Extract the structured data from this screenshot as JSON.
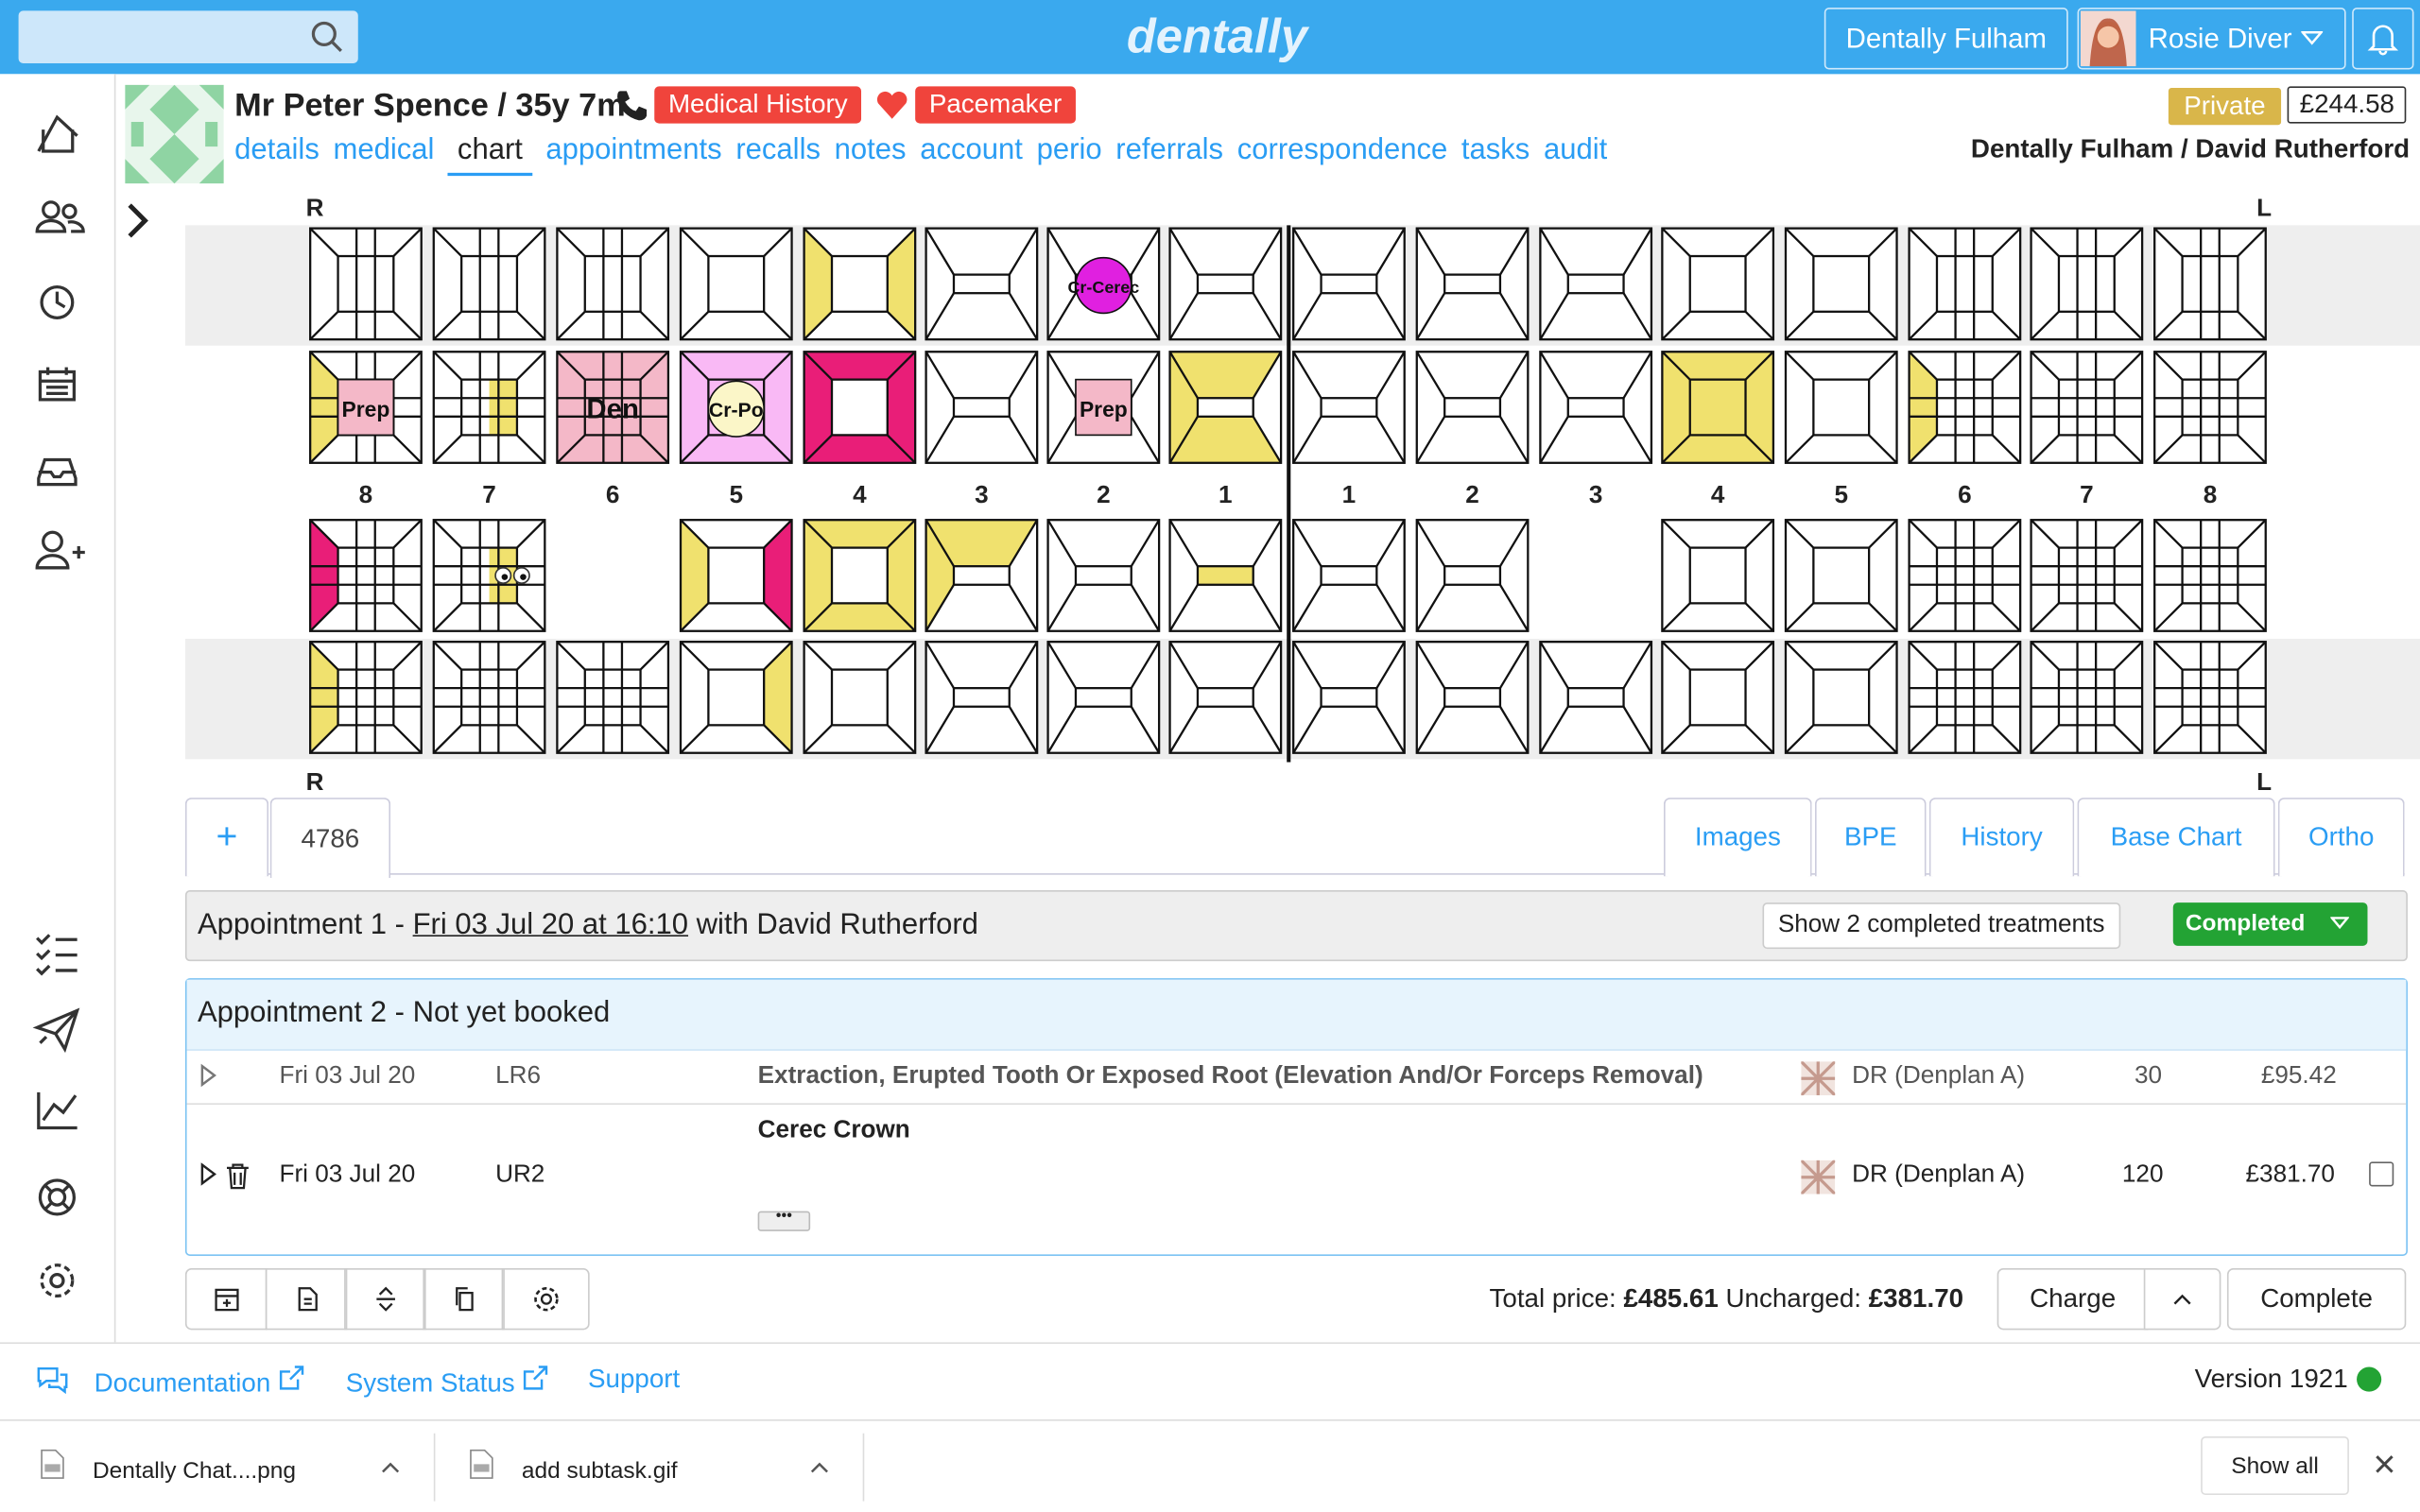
{
  "header": {
    "logo": "dentally",
    "practice": "Dentally Fulham",
    "user": "Rosie Diver"
  },
  "patient": {
    "name": "Mr Peter Spence / 35y 7m",
    "medical_history": "Medical History",
    "alert": "Pacemaker",
    "status": "Private",
    "balance": "£244.58",
    "location": "Dentally Fulham / David Rutherford",
    "tabs": [
      "details",
      "medical",
      "chart",
      "appointments",
      "recalls",
      "notes",
      "account",
      "perio",
      "referrals",
      "correspondence",
      "tasks",
      "audit"
    ]
  },
  "chart": {
    "right": "R",
    "left": "L",
    "tooth_numbers": [
      8,
      7,
      6,
      5,
      4,
      3,
      2,
      1,
      1,
      2,
      3,
      4,
      5,
      6,
      7,
      8
    ],
    "labels": [
      "Cr-Cerec",
      "Prep",
      "Den",
      "Cr-Po",
      "Prep"
    ]
  },
  "course_tabs": [
    "+",
    "4786"
  ],
  "view_tabs": [
    "Images",
    "BPE",
    "History",
    "Base Chart",
    "Ortho"
  ],
  "appointment1": {
    "prefix": "Appointment 1 - ",
    "date": "Fri 03 Jul 20 at 16:10",
    "with": " with David Rutherford",
    "show_completed": "Show 2 completed treatments",
    "status": "Completed"
  },
  "appointment2": {
    "title": "Appointment 2 - Not yet booked",
    "treatments": [
      {
        "date": "Fri 03 Jul 20",
        "tooth": "LR6",
        "description": "Extraction, Erupted Tooth Or Exposed Root (Elevation And/Or Forceps Removal)",
        "provider": "DR (Denplan A)",
        "units": 30,
        "price": "£95.42"
      },
      {
        "date": "Fri 03 Jul 20",
        "tooth": "UR2",
        "description": "Cerec Crown",
        "provider": "DR (Denplan A)",
        "units": 120,
        "price": "£381.70"
      }
    ]
  },
  "totals": {
    "total_label": "Total price:",
    "total": "£485.61",
    "uncharged_label": "Uncharged:",
    "uncharged": "£381.70",
    "charge": "Charge",
    "complete": "Complete"
  },
  "links": [
    "Documentation",
    "System Status",
    "Support"
  ],
  "version": "Version 1921",
  "downloads": [
    "Dentally Chat....png",
    "add subtask.gif"
  ],
  "show_all": "Show all"
}
